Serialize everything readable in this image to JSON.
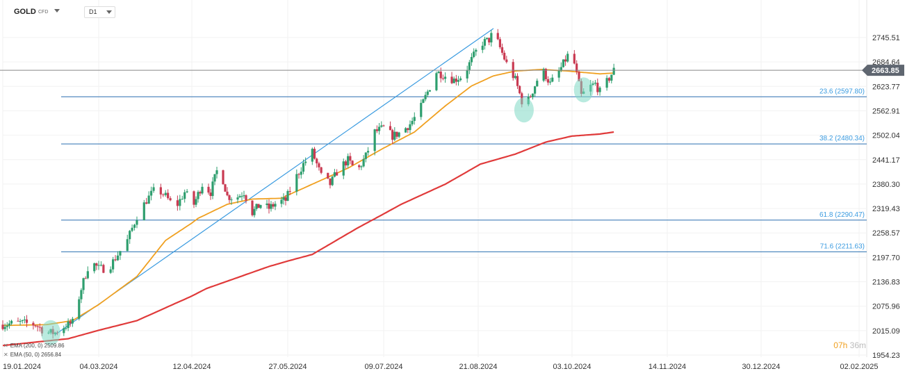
{
  "header": {
    "symbol": "GOLD",
    "symbol_type": "CFD",
    "timeframe": "D1"
  },
  "legend": [
    {
      "text": "EMA (200, 0) 2509.86",
      "color": "#e03a3a"
    },
    {
      "text": "EMA (50, 0) 2656.84",
      "color": "#f0a020"
    }
  ],
  "timer": {
    "hours": "07h",
    "minutes": "36m"
  },
  "colors": {
    "up": "#2e9e6e",
    "down": "#c93a52",
    "ema50": "#f0a020",
    "ema200": "#e03a3a",
    "fib": "#2a6fb0",
    "trend": "#3a9be0",
    "price_line": "#888888",
    "price_tag": "#5f6670",
    "highlight": "#7fd9c4"
  },
  "chart_data": {
    "type": "candlestick",
    "y_ticks": [
      "2745.51",
      "2684.64",
      "2623.77",
      "2562.91",
      "2502.04",
      "2441.17",
      "2380.30",
      "2319.43",
      "2258.57",
      "2197.70",
      "2136.83",
      "2075.96",
      "2015.09",
      "1954.23"
    ],
    "ylim": [
      1954.23,
      2768
    ],
    "x_ticks": [
      "19.01.2024",
      "04.03.2024",
      "12.04.2024",
      "27.05.2024",
      "09.07.2024",
      "21.08.2024",
      "03.10.2024",
      "14.11.2024",
      "30.12.2024",
      "02.02.2025"
    ],
    "current_price": "2663.85",
    "fibonacci": [
      {
        "label": "23.6 (2597.80)",
        "value": 2597.8
      },
      {
        "label": "38.2 (2480.34)",
        "value": 2480.34
      },
      {
        "label": "61.8 (2290.47)",
        "value": 2290.47
      },
      {
        "label": "71.6 (2211.63)",
        "value": 2211.63
      }
    ],
    "trendline": {
      "from": [
        24,
        2005
      ],
      "to": [
        222,
        2768
      ]
    },
    "highlights": [
      {
        "x": 22,
        "y": 2010
      },
      {
        "x": 236,
        "y": 2565
      },
      {
        "x": 263,
        "y": 2615
      }
    ],
    "anchors": [
      [
        0,
        2030
      ],
      [
        8,
        2035
      ],
      [
        15,
        2030
      ],
      [
        20,
        2010
      ],
      [
        24,
        2010
      ],
      [
        28,
        2025
      ],
      [
        32,
        2035
      ],
      [
        36,
        2120
      ],
      [
        40,
        2190
      ],
      [
        44,
        2170
      ],
      [
        48,
        2170
      ],
      [
        52,
        2205
      ],
      [
        56,
        2240
      ],
      [
        60,
        2300
      ],
      [
        64,
        2340
      ],
      [
        68,
        2370
      ],
      [
        72,
        2350
      ],
      [
        76,
        2320
      ],
      [
        80,
        2360
      ],
      [
        84,
        2330
      ],
      [
        88,
        2380
      ],
      [
        92,
        2360
      ],
      [
        96,
        2430
      ],
      [
        100,
        2350
      ],
      [
        104,
        2345
      ],
      [
        108,
        2360
      ],
      [
        112,
        2310
      ],
      [
        116,
        2330
      ],
      [
        120,
        2320
      ],
      [
        124,
        2335
      ],
      [
        128,
        2340
      ],
      [
        132,
        2390
      ],
      [
        136,
        2430
      ],
      [
        140,
        2460
      ],
      [
        144,
        2400
      ],
      [
        148,
        2380
      ],
      [
        152,
        2420
      ],
      [
        156,
        2440
      ],
      [
        160,
        2410
      ],
      [
        164,
        2450
      ],
      [
        168,
        2510
      ],
      [
        172,
        2520
      ],
      [
        176,
        2500
      ],
      [
        180,
        2510
      ],
      [
        184,
        2530
      ],
      [
        188,
        2560
      ],
      [
        192,
        2610
      ],
      [
        196,
        2660
      ],
      [
        200,
        2650
      ],
      [
        204,
        2640
      ],
      [
        208,
        2650
      ],
      [
        212,
        2690
      ],
      [
        216,
        2730
      ],
      [
        220,
        2740
      ],
      [
        222,
        2760
      ],
      [
        225,
        2720
      ],
      [
        228,
        2680
      ],
      [
        232,
        2640
      ],
      [
        236,
        2570
      ],
      [
        239,
        2600
      ],
      [
        242,
        2640
      ],
      [
        245,
        2660
      ],
      [
        248,
        2630
      ],
      [
        252,
        2660
      ],
      [
        256,
        2700
      ],
      [
        259,
        2680
      ],
      [
        262,
        2600
      ],
      [
        265,
        2620
      ],
      [
        268,
        2630
      ],
      [
        270,
        2610
      ],
      [
        273,
        2635
      ],
      [
        276,
        2663.85
      ]
    ],
    "x_days": [
      0,
      44,
      83,
      129,
      172,
      215,
      258,
      299,
      345,
      380
    ],
    "ema50_pts": [
      [
        0,
        2028
      ],
      [
        20,
        2030
      ],
      [
        32,
        2040
      ],
      [
        44,
        2080
      ],
      [
        60,
        2150
      ],
      [
        72,
        2240
      ],
      [
        86,
        2295
      ],
      [
        100,
        2330
      ],
      [
        112,
        2343
      ],
      [
        126,
        2345
      ],
      [
        140,
        2380
      ],
      [
        156,
        2420
      ],
      [
        172,
        2470
      ],
      [
        186,
        2510
      ],
      [
        200,
        2575
      ],
      [
        212,
        2625
      ],
      [
        222,
        2650
      ],
      [
        232,
        2662
      ],
      [
        244,
        2666
      ],
      [
        256,
        2662
      ],
      [
        270,
        2655
      ],
      [
        276,
        2657
      ]
    ],
    "ema200_pts": [
      [
        0,
        1978
      ],
      [
        30,
        1995
      ],
      [
        60,
        2040
      ],
      [
        90,
        2120
      ],
      [
        120,
        2175
      ],
      [
        140,
        2205
      ],
      [
        160,
        2270
      ],
      [
        180,
        2330
      ],
      [
        200,
        2380
      ],
      [
        216,
        2430
      ],
      [
        232,
        2455
      ],
      [
        246,
        2485
      ],
      [
        258,
        2500
      ],
      [
        270,
        2505
      ],
      [
        276,
        2510
      ]
    ]
  }
}
